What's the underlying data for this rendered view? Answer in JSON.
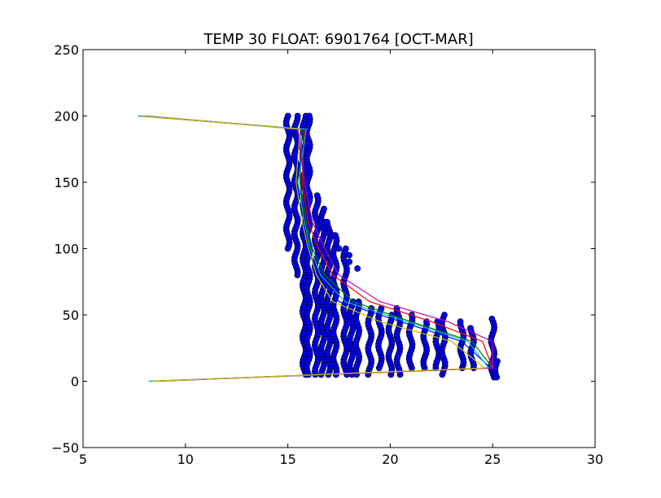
{
  "chart_data": {
    "type": "scatter",
    "title": "TEMP 30 FLOAT: 6901764 [OCT-MAR]",
    "xlabel": "",
    "ylabel": "",
    "xlim": [
      5,
      30
    ],
    "ylim": [
      -50,
      250
    ],
    "xticks": [
      5,
      10,
      15,
      20,
      25,
      30
    ],
    "yticks": [
      -50,
      0,
      50,
      100,
      150,
      200,
      250
    ],
    "grid": false,
    "line_colors": [
      "#0000ff",
      "#008000",
      "#ff0000",
      "#00bfbf",
      "#bf00bf",
      "#bfbf00"
    ],
    "marker_color": "#0000ff",
    "profiles": [
      {
        "x": [
          7.9,
          15.6,
          15.6,
          15.8,
          16.0,
          16.5,
          17.5,
          20.5,
          23.5,
          24.9,
          8.4
        ],
        "y": [
          200,
          190,
          150,
          120,
          100,
          80,
          60,
          45,
          30,
          10,
          0
        ]
      },
      {
        "x": [
          7.7,
          15.7,
          15.6,
          15.9,
          16.2,
          16.8,
          18.2,
          21.0,
          24.0,
          25.0,
          8.3
        ],
        "y": [
          200,
          190,
          150,
          120,
          100,
          80,
          60,
          45,
          30,
          10,
          0
        ]
      },
      {
        "x": [
          8.0,
          15.8,
          15.7,
          16.0,
          16.5,
          17.2,
          19.0,
          22.0,
          24.5,
          25.0,
          8.5
        ],
        "y": [
          200,
          190,
          150,
          120,
          100,
          80,
          60,
          45,
          30,
          10,
          0
        ]
      },
      {
        "x": [
          7.8,
          15.9,
          15.5,
          15.8,
          16.1,
          16.6,
          17.8,
          20.8,
          23.8,
          24.8,
          8.2
        ],
        "y": [
          200,
          190,
          150,
          120,
          100,
          80,
          60,
          45,
          30,
          10,
          0
        ]
      },
      {
        "x": [
          8.1,
          15.5,
          15.8,
          16.2,
          16.8,
          17.5,
          19.5,
          22.8,
          25.0,
          25.0,
          8.6
        ],
        "y": [
          200,
          190,
          150,
          120,
          100,
          80,
          60,
          45,
          30,
          10,
          0
        ]
      },
      {
        "x": [
          7.9,
          15.6,
          15.4,
          15.7,
          16.0,
          16.4,
          17.2,
          19.5,
          23.0,
          24.6,
          8.4
        ],
        "y": [
          200,
          190,
          150,
          120,
          100,
          80,
          60,
          45,
          30,
          10,
          0
        ]
      }
    ],
    "point_columns": [
      {
        "x": 15.0,
        "ymin": 100,
        "ymax": 200
      },
      {
        "x": 15.4,
        "ymin": 80,
        "ymax": 200
      },
      {
        "x": 15.8,
        "ymin": 5,
        "ymax": 200
      },
      {
        "x": 16.0,
        "ymin": 5,
        "ymax": 200
      },
      {
        "x": 16.4,
        "ymin": 5,
        "ymax": 140
      },
      {
        "x": 16.7,
        "ymin": 5,
        "ymax": 130
      },
      {
        "x": 17.0,
        "ymin": 5,
        "ymax": 120
      },
      {
        "x": 17.3,
        "ymin": 5,
        "ymax": 110
      },
      {
        "x": 17.8,
        "ymin": 5,
        "ymax": 100
      },
      {
        "x": 18.1,
        "ymin": 5,
        "ymax": 60
      },
      {
        "x": 18.4,
        "ymin": 5,
        "ymax": 60
      },
      {
        "x": 19.0,
        "ymin": 5,
        "ymax": 55
      },
      {
        "x": 19.5,
        "ymin": 10,
        "ymax": 55
      },
      {
        "x": 20.0,
        "ymin": 5,
        "ymax": 50
      },
      {
        "x": 20.4,
        "ymin": 5,
        "ymax": 55
      },
      {
        "x": 21.0,
        "ymin": 10,
        "ymax": 50
      },
      {
        "x": 21.7,
        "ymin": 10,
        "ymax": 45
      },
      {
        "x": 22.3,
        "ymin": 10,
        "ymax": 45
      },
      {
        "x": 22.6,
        "ymin": 5,
        "ymax": 50
      },
      {
        "x": 23.5,
        "ymin": 10,
        "ymax": 45
      },
      {
        "x": 24.0,
        "ymin": 10,
        "ymax": 40
      },
      {
        "x": 25.0,
        "ymin": 3,
        "ymax": 47
      },
      {
        "x": 25.2,
        "ymin": 3,
        "ymax": 15
      }
    ],
    "loop_points": {
      "x": [
        16.8,
        17.2,
        17.5,
        17.8,
        18.0,
        18.0,
        18.4
      ],
      "y": [
        120,
        110,
        100,
        97,
        95,
        90,
        85
      ]
    }
  }
}
